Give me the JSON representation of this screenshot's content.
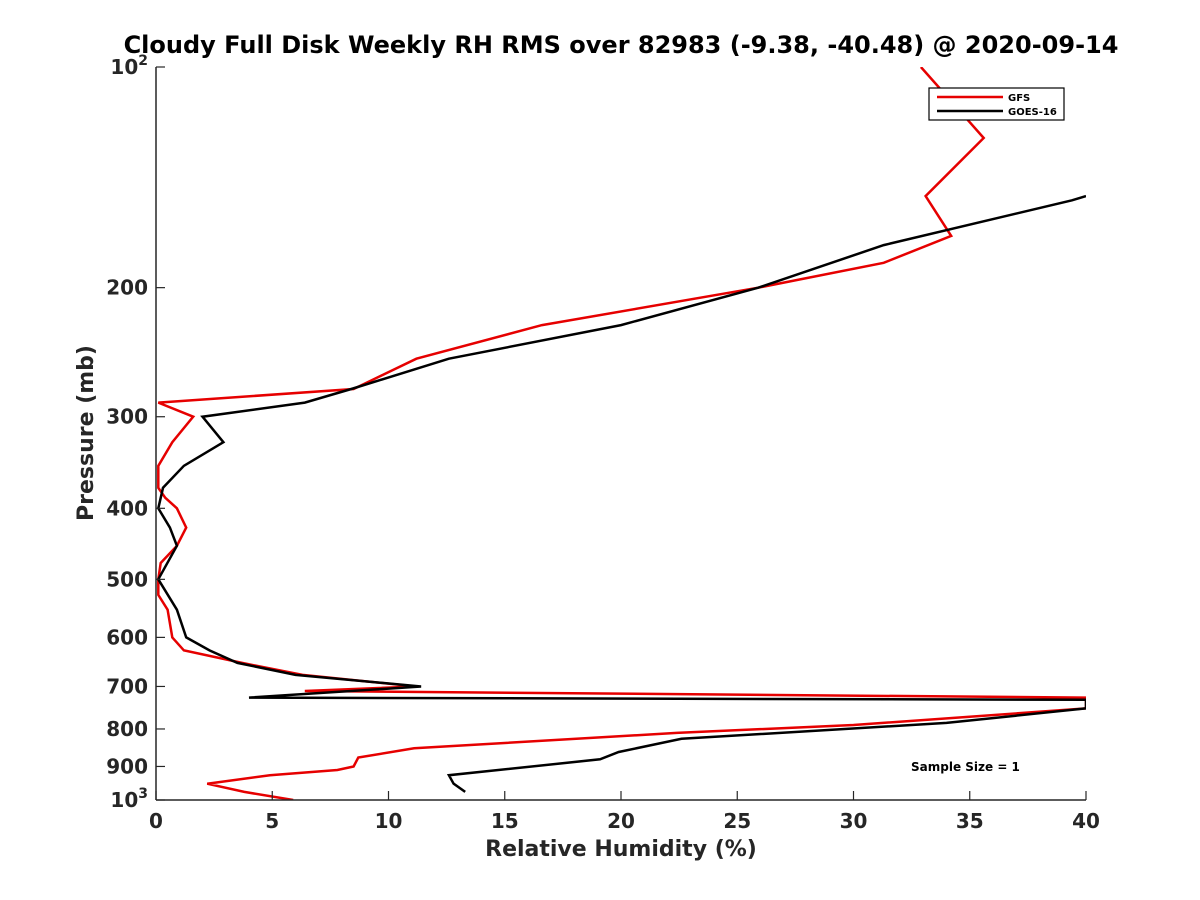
{
  "chart_data": {
    "type": "line",
    "title": "Cloudy Full Disk Weekly RH RMS over 82983 (-9.38, -40.48) @ 2020-09-14",
    "xlabel": "Relative Humidity (%)",
    "ylabel": "Pressure (mb)",
    "xlim": [
      0,
      40
    ],
    "ylim": [
      100,
      1000
    ],
    "y_scale": "log",
    "y_reversed": true,
    "grid": false,
    "legend_position": "top-right",
    "x_ticks": [
      {
        "value": 0,
        "label": "0"
      },
      {
        "value": 5,
        "label": "5"
      },
      {
        "value": 10,
        "label": "10"
      },
      {
        "value": 15,
        "label": "15"
      },
      {
        "value": 20,
        "label": "20"
      },
      {
        "value": 25,
        "label": "25"
      },
      {
        "value": 30,
        "label": "30"
      },
      {
        "value": 35,
        "label": "35"
      },
      {
        "value": 40,
        "label": "40"
      }
    ],
    "y_ticks": [
      {
        "value": 100,
        "base": "10",
        "exp": "2"
      },
      {
        "value": 200,
        "base": "200",
        "exp": ""
      },
      {
        "value": 300,
        "base": "300",
        "exp": ""
      },
      {
        "value": 400,
        "base": "400",
        "exp": ""
      },
      {
        "value": 500,
        "base": "500",
        "exp": ""
      },
      {
        "value": 600,
        "base": "600",
        "exp": ""
      },
      {
        "value": 700,
        "base": "700",
        "exp": ""
      },
      {
        "value": 800,
        "base": "800",
        "exp": ""
      },
      {
        "value": 900,
        "base": "900",
        "exp": ""
      },
      {
        "value": 1000,
        "base": "10",
        "exp": "3"
      }
    ],
    "series": [
      {
        "name": "GFS",
        "color": "#e60000",
        "points": [
          [
            32.9,
            100
          ],
          [
            35.6,
            125
          ],
          [
            33.1,
            150
          ],
          [
            34.2,
            170
          ],
          [
            31.3,
            185
          ],
          [
            25.9,
            200
          ],
          [
            16.6,
            225
          ],
          [
            11.2,
            250
          ],
          [
            8.5,
            275
          ],
          [
            0.1,
            287
          ],
          [
            1.6,
            300
          ],
          [
            0.7,
            325
          ],
          [
            0.1,
            350
          ],
          [
            0.1,
            375
          ],
          [
            0.4,
            387
          ],
          [
            0.9,
            400
          ],
          [
            1.3,
            425
          ],
          [
            0.9,
            450
          ],
          [
            0.2,
            475
          ],
          [
            0.1,
            500
          ],
          [
            0.1,
            525
          ],
          [
            0.5,
            550
          ],
          [
            0.7,
            600
          ],
          [
            1.2,
            625
          ],
          [
            3.7,
            650
          ],
          [
            6.3,
            675
          ],
          [
            11.2,
            700
          ],
          [
            6.4,
            710
          ],
          [
            40,
            725
          ],
          [
            40,
            750
          ],
          [
            30,
            790
          ],
          [
            22.4,
            810
          ],
          [
            11.1,
            850
          ],
          [
            8.7,
            875
          ],
          [
            8.5,
            900
          ],
          [
            7.8,
            910
          ],
          [
            4.9,
            925
          ],
          [
            2.2,
            950
          ],
          [
            3.8,
            975
          ],
          [
            5.9,
            1000
          ]
        ]
      },
      {
        "name": "GOES-16",
        "color": "#000000",
        "points": [
          [
            40,
            150
          ],
          [
            39.4,
            152
          ],
          [
            31.3,
            175
          ],
          [
            25.9,
            200
          ],
          [
            20.0,
            225
          ],
          [
            12.6,
            250
          ],
          [
            8.4,
            275
          ],
          [
            6.4,
            287
          ],
          [
            2.0,
            300
          ],
          [
            2.9,
            325
          ],
          [
            1.2,
            350
          ],
          [
            0.3,
            375
          ],
          [
            0.1,
            400
          ],
          [
            0.6,
            425
          ],
          [
            0.9,
            450
          ],
          [
            0.1,
            500
          ],
          [
            0.9,
            550
          ],
          [
            1.3,
            600
          ],
          [
            2.3,
            625
          ],
          [
            3.5,
            650
          ],
          [
            6.0,
            675
          ],
          [
            11.4,
            700
          ],
          [
            4.0,
            725
          ],
          [
            40,
            730
          ],
          [
            40,
            750
          ],
          [
            34,
            785
          ],
          [
            22.6,
            825
          ],
          [
            19.9,
            860
          ],
          [
            19.1,
            880
          ],
          [
            12.6,
            925
          ],
          [
            12.8,
            950
          ],
          [
            13.3,
            975
          ]
        ]
      }
    ],
    "annotation": "Sample Size = 1"
  }
}
